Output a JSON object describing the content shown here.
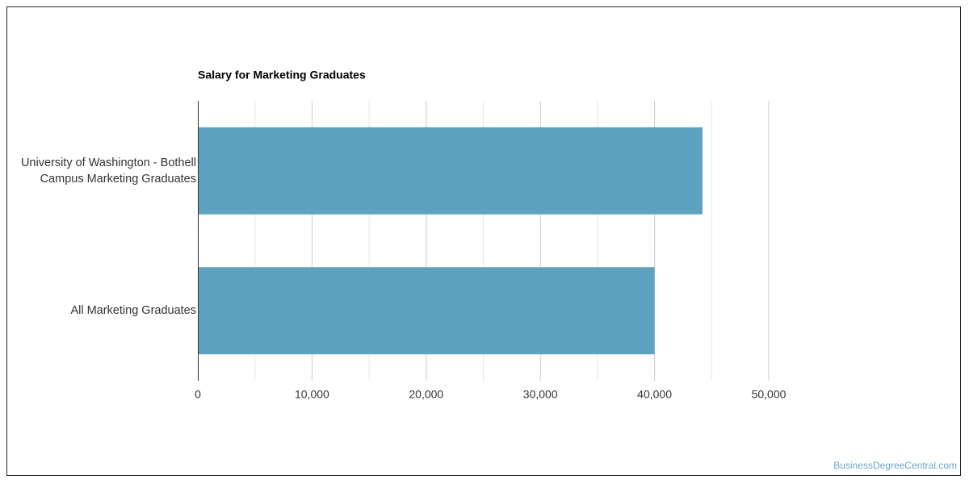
{
  "chart_data": {
    "type": "bar",
    "orientation": "horizontal",
    "title": "Salary for Marketing Graduates",
    "categories": [
      "University of Washington - Bothell Campus Marketing Graduates",
      "All Marketing Graduates"
    ],
    "values": [
      44200,
      40000
    ],
    "color": "#5ea2bf",
    "xlim": [
      0,
      50000
    ],
    "xticks": [
      0,
      {
        "value": 10000,
        "label": "10,000"
      },
      {
        "value": 20000,
        "label": "20,000"
      },
      {
        "value": 30000,
        "label": "30,000"
      },
      {
        "value": 40000,
        "label": "40,000"
      },
      {
        "value": 50000,
        "label": "50,000"
      }
    ],
    "xminorticks": [
      5000,
      15000,
      25000,
      35000,
      45000
    ],
    "grid": true,
    "source": "BusinessDegreeCentral.com"
  }
}
